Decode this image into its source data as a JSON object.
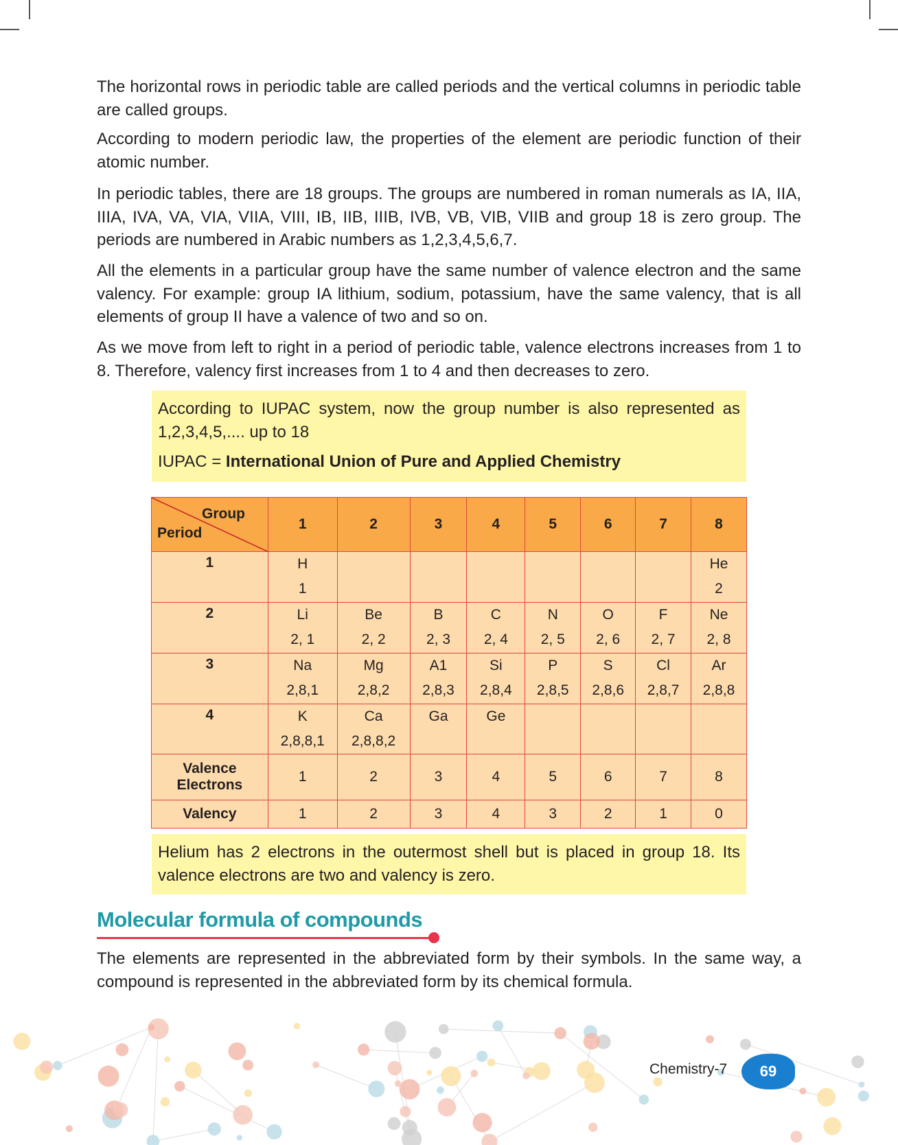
{
  "paragraphs": [
    "The horizontal rows in periodic table are called periods and the vertical columns in periodic table are called groups.",
    "According to modern periodic law, the properties of the element are periodic function of their atomic number.",
    "In periodic tables, there are 18 groups. The groups are numbered in roman numerals as IA, IIA, IIIA, IVA, VA, VIA, VIIA, VIII, IB, IIB, IIIB, IVB, VB, VIB, VIIB and group 18 is zero group. The periods are numbered in Arabic numbers as 1,2,3,4,5,6,7.",
    "All the elements in a particular group have the same number of valence electron and the same valency. For example: group IA lithium, sodium, potassium, have the same valency, that is all elements of group II have a valence of two and so on.",
    "As we move from left to right in a period of periodic table, valence electrons increases from 1 to 8. Therefore, valency first increases from 1 to 4 and then decreases to zero."
  ],
  "note1": {
    "text": "According to IUPAC system, now the group number is also represented as 1,2,3,4,5,.... up to 18",
    "iupac_prefix": "IUPAC = ",
    "iupac_full": "International Union of Pure and Applied Chemistry"
  },
  "table": {
    "corner_group": "Group",
    "corner_period": "Period",
    "groups": [
      "1",
      "2",
      "3",
      "4",
      "5",
      "6",
      "7",
      "8"
    ],
    "rows": [
      {
        "period": "1",
        "cells": [
          [
            "H",
            "1"
          ],
          [
            "",
            ""
          ],
          [
            "",
            ""
          ],
          [
            "",
            ""
          ],
          [
            "",
            ""
          ],
          [
            "",
            ""
          ],
          [
            "",
            ""
          ],
          [
            "He",
            "2"
          ]
        ]
      },
      {
        "period": "2",
        "cells": [
          [
            "Li",
            "2, 1"
          ],
          [
            "Be",
            "2, 2"
          ],
          [
            "B",
            "2, 3"
          ],
          [
            "C",
            "2, 4"
          ],
          [
            "N",
            "2, 5"
          ],
          [
            "O",
            "2, 6"
          ],
          [
            "F",
            "2, 7"
          ],
          [
            "Ne",
            "2, 8"
          ]
        ]
      },
      {
        "period": "3",
        "cells": [
          [
            "Na",
            "2,8,1"
          ],
          [
            "Mg",
            "2,8,2"
          ],
          [
            "A1",
            "2,8,3"
          ],
          [
            "Si",
            "2,8,4"
          ],
          [
            "P",
            "2,8,5"
          ],
          [
            "S",
            "2,8,6"
          ],
          [
            "Cl",
            "2,8,7"
          ],
          [
            "Ar",
            "2,8,8"
          ]
        ]
      },
      {
        "period": "4",
        "cells": [
          [
            "K",
            "2,8,8,1"
          ],
          [
            "Ca",
            "2,8,8,2"
          ],
          [
            "Ga",
            ""
          ],
          [
            "Ge",
            ""
          ],
          [
            "",
            ""
          ],
          [
            "",
            ""
          ],
          [
            "",
            ""
          ],
          [
            "",
            ""
          ]
        ]
      }
    ],
    "valence_label": "Valence Electrons",
    "valence": [
      "1",
      "2",
      "3",
      "4",
      "5",
      "6",
      "7",
      "8"
    ],
    "valency_label": "Valency",
    "valency": [
      "1",
      "2",
      "3",
      "4",
      "3",
      "2",
      "1",
      "0"
    ]
  },
  "note2": "Helium has 2 electrons in the outermost shell but is placed in group 18. Its valence electrons are two and valency is zero.",
  "section_heading": "Molecular formula of compounds",
  "section_paragraph": "The elements are represented in the abbreviated form by their symbols. In the same way, a compound is represented in the abbreviated form by its chemical formula.",
  "footer": {
    "book": "Chemistry-7",
    "page": "69"
  },
  "colors": {
    "header": "#f9a947",
    "cell": "#fddbac",
    "border": "#e0473a",
    "note": "#fff7a8",
    "heading": "#1f9aa6",
    "accent": "#e8334a"
  }
}
